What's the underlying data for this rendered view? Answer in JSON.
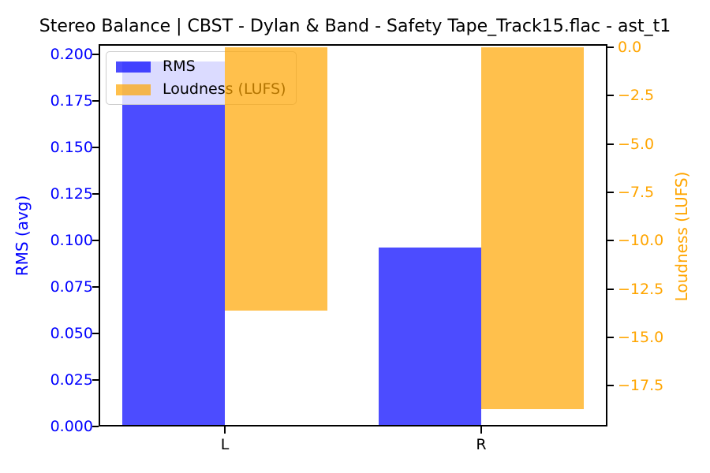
{
  "chart_data": {
    "type": "bar",
    "title": "Stereo Balance | CBST - Dylan & Band - Safety Tape_Track15.flac - ast_t1",
    "categories": [
      "L",
      "R"
    ],
    "series": [
      {
        "name": "RMS",
        "axis": "left",
        "values": [
          0.196,
          0.096
        ],
        "bar_color": "rgba(0,0,255,0.7)",
        "color_hex": "#4D4DFF"
      },
      {
        "name": "Loudness (LUFS)",
        "axis": "right",
        "values": [
          -13.6,
          -18.7
        ],
        "bar_color": "rgba(255,165,0,0.7)",
        "color_hex": "#FFC04D"
      }
    ],
    "left_axis": {
      "label": "RMS (avg)",
      "color": "#0000FF",
      "min": 0,
      "max": 0.2055,
      "tick_values": [
        0,
        0.025,
        0.05,
        0.075,
        0.1,
        0.125,
        0.15,
        0.175,
        0.2
      ],
      "tick_labels": [
        "0.000",
        "0.025",
        "0.050",
        "0.075",
        "0.100",
        "0.125",
        "0.150",
        "0.175",
        "0.200"
      ]
    },
    "right_axis": {
      "label": "Loudness (LUFS)",
      "color": "#FFA500",
      "min": -19.6,
      "max": 0.16,
      "tick_values": [
        0,
        -2.5,
        -5,
        -7.5,
        -10,
        -12.5,
        -15,
        -17.5
      ],
      "tick_labels": [
        "0.0",
        "−2.5",
        "−5.0",
        "−7.5",
        "−10.0",
        "−12.5",
        "−15.0",
        "−17.5"
      ]
    },
    "legend": {
      "position": "upper-left",
      "entries": [
        "RMS",
        "Loudness (LUFS)"
      ]
    },
    "grid": false,
    "background": "#FFFFFF",
    "tick_color": "#000000",
    "x_tick_label_color": "#000000"
  }
}
